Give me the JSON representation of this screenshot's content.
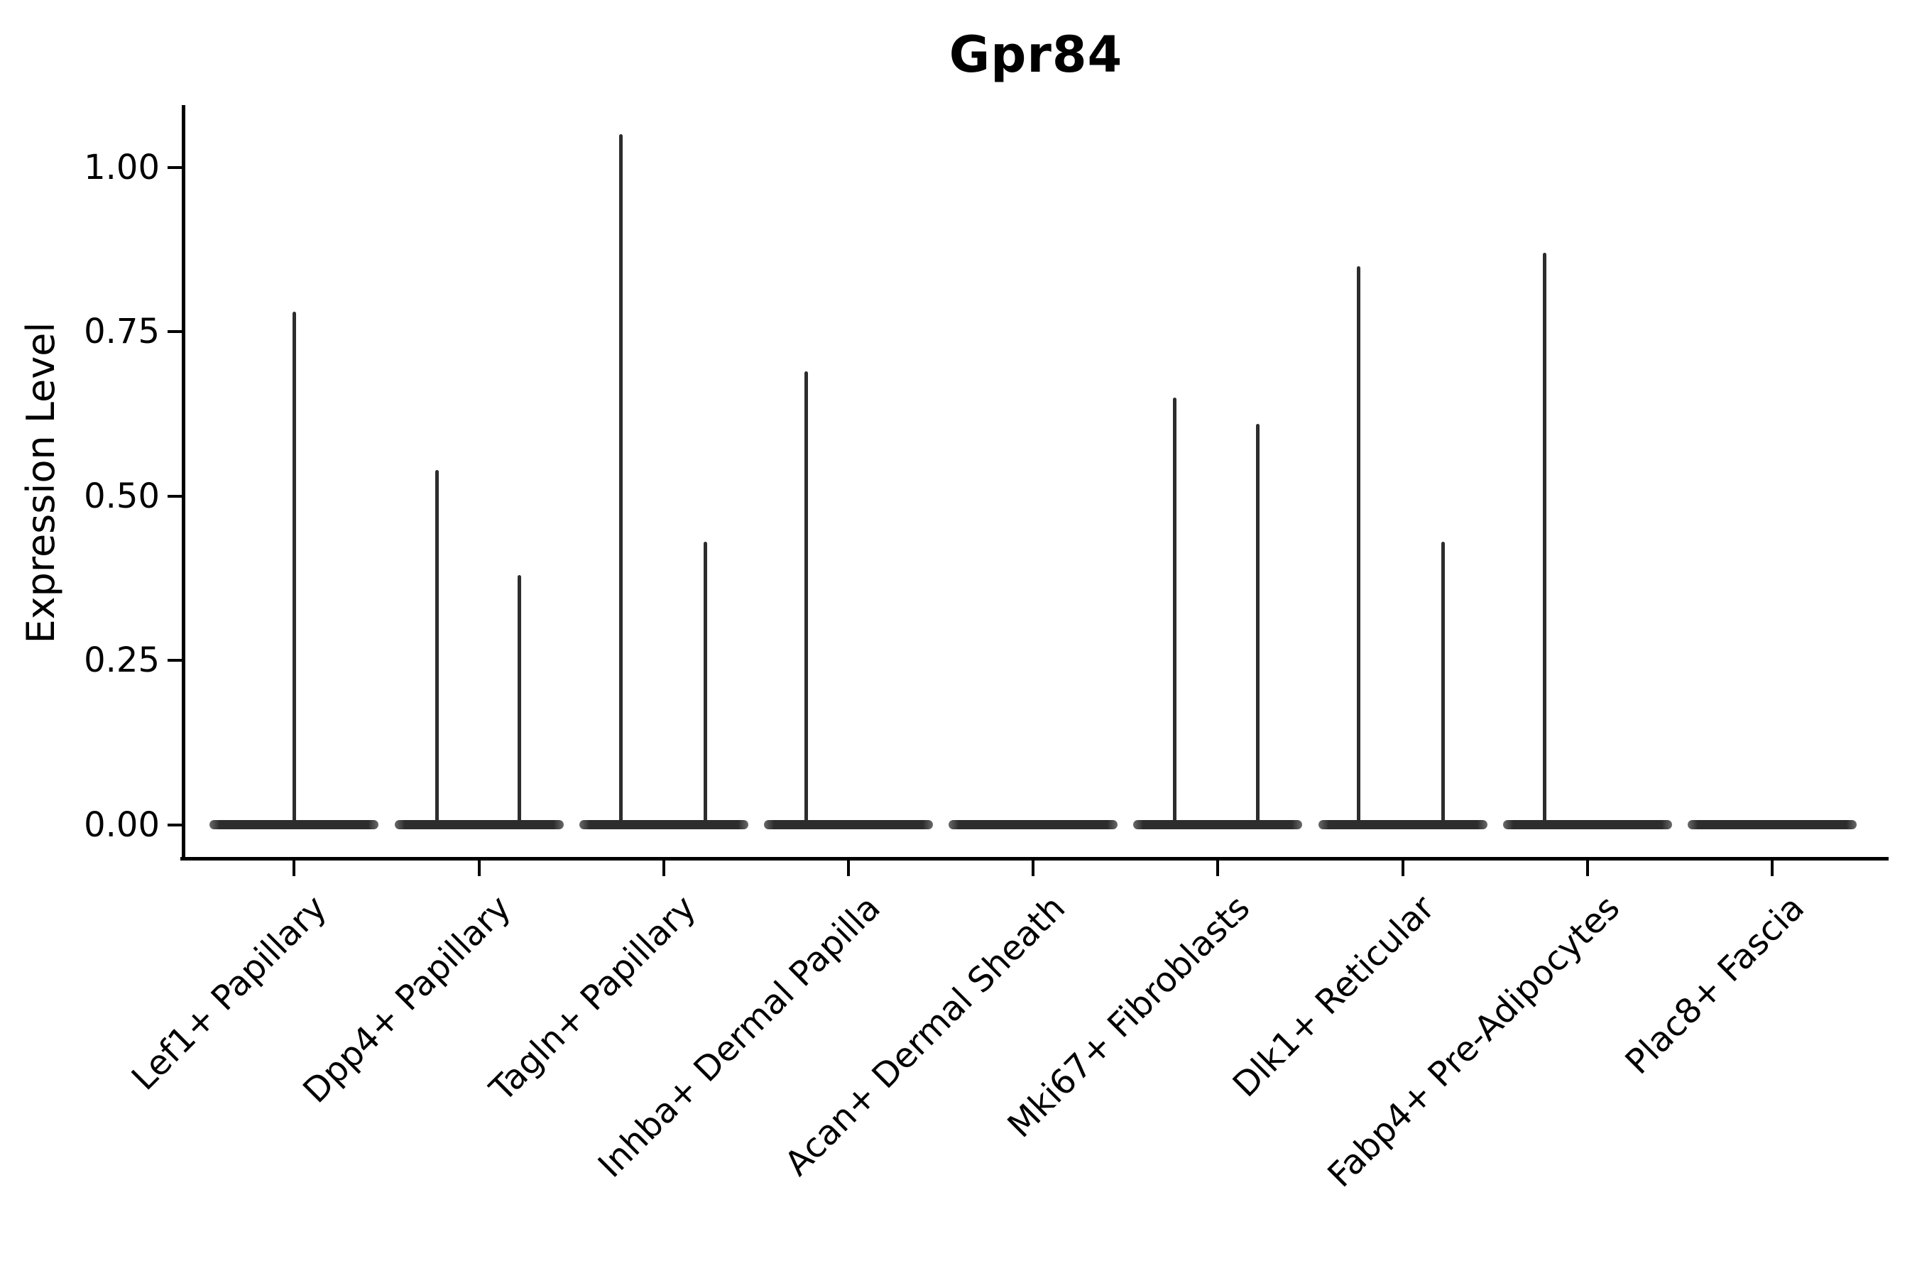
{
  "chart_data": {
    "type": "violin",
    "title": "Gpr84",
    "xlabel": "",
    "ylabel": "Expression Level",
    "ylim": [
      -0.05,
      1.1
    ],
    "grid": false,
    "legend": "none",
    "yticks": [
      {
        "label": "1.00",
        "value": 1.0
      },
      {
        "label": "0.75",
        "value": 0.75
      },
      {
        "label": "0.50",
        "value": 0.5
      },
      {
        "label": "0.25",
        "value": 0.25
      },
      {
        "label": "0.00",
        "value": 0.0
      }
    ],
    "categories": [
      "Lef1+ Papillary",
      "Dpp4+ Papillary",
      "Tagln+ Papillary",
      "Inhba+ Dermal Papilla",
      "Acan+ Dermal Sheath",
      "Mki67+ Fibroblasts",
      "Dlk1+ Reticular",
      "Fabp4+ Pre-Adipocytes",
      "Plac8+ Fascia"
    ],
    "groups": [
      {
        "label": "Lef1+ Papillary",
        "zero_bulk": true,
        "spikes": [
          {
            "pos": 0.0,
            "value": 0.78
          }
        ]
      },
      {
        "label": "Dpp4+ Papillary",
        "zero_bulk": true,
        "spikes": [
          {
            "pos": -0.225,
            "value": 0.54
          },
          {
            "pos": 0.22,
            "value": 0.38
          }
        ]
      },
      {
        "label": "Tagln+ Papillary",
        "zero_bulk": true,
        "spikes": [
          {
            "pos": -0.23,
            "value": 1.05
          },
          {
            "pos": 0.225,
            "value": 0.43
          }
        ]
      },
      {
        "label": "Inhba+ Dermal Papilla",
        "zero_bulk": true,
        "spikes": [
          {
            "pos": -0.23,
            "value": 0.69
          }
        ]
      },
      {
        "label": "Acan+ Dermal Sheath",
        "zero_bulk": true,
        "spikes": []
      },
      {
        "label": "Mki67+ Fibroblasts",
        "zero_bulk": true,
        "spikes": [
          {
            "pos": -0.232,
            "value": 0.65
          },
          {
            "pos": 0.215,
            "value": 0.61
          }
        ]
      },
      {
        "label": "Dlk1+ Reticular",
        "zero_bulk": true,
        "spikes": [
          {
            "pos": -0.24,
            "value": 0.85
          },
          {
            "pos": 0.218,
            "value": 0.43
          }
        ]
      },
      {
        "label": "Fabp4+ Pre-Adipocytes",
        "zero_bulk": true,
        "spikes": [
          {
            "pos": -0.233,
            "value": 0.87
          }
        ]
      },
      {
        "label": "Plac8+ Fascia",
        "zero_bulk": true,
        "spikes": []
      }
    ],
    "colors": {
      "violin": "#2d2d2d",
      "axis": "#000000",
      "text": "#000000",
      "background": "#ffffff"
    }
  }
}
